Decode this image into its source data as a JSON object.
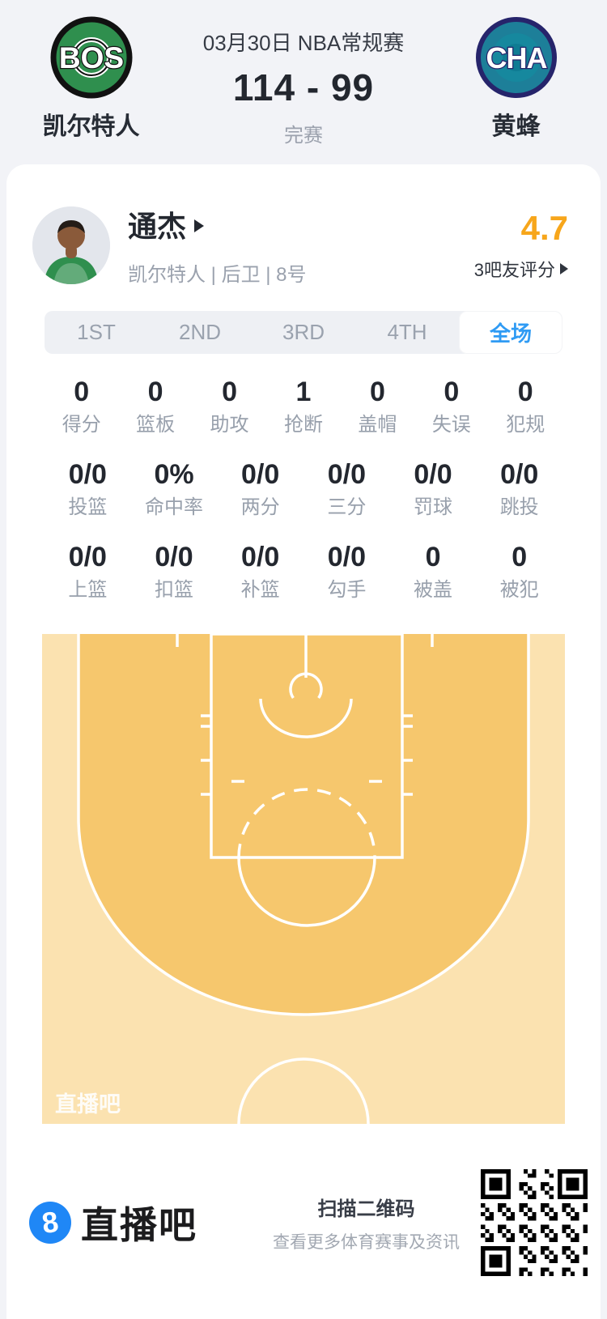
{
  "header": {
    "match_info": "03月30日 NBA常规赛",
    "score": "114 - 99",
    "status": "完赛",
    "home": {
      "abbr": "BOS",
      "name": "凯尔特人",
      "logo_fill": "#2f8f4e",
      "logo_ring": "#111111"
    },
    "away": {
      "abbr": "CHA",
      "name": "黄蜂",
      "logo_fill": "#1d7f99",
      "logo_ring": "#26246b"
    }
  },
  "player": {
    "name": "通杰",
    "meta": "凯尔特人 | 后卫 | 8号",
    "rating": "4.7",
    "rating_label": "3吧友评分"
  },
  "tabs": [
    {
      "label": "1ST",
      "active": false
    },
    {
      "label": "2ND",
      "active": false
    },
    {
      "label": "3RD",
      "active": false
    },
    {
      "label": "4TH",
      "active": false
    },
    {
      "label": "全场",
      "active": true
    }
  ],
  "stats": {
    "row1": [
      {
        "value": "0",
        "label": "得分"
      },
      {
        "value": "0",
        "label": "篮板"
      },
      {
        "value": "0",
        "label": "助攻"
      },
      {
        "value": "1",
        "label": "抢断"
      },
      {
        "value": "0",
        "label": "盖帽"
      },
      {
        "value": "0",
        "label": "失误"
      },
      {
        "value": "0",
        "label": "犯规"
      }
    ],
    "row2": [
      {
        "value": "0/0",
        "label": "投篮"
      },
      {
        "value": "0%",
        "label": "命中率"
      },
      {
        "value": "0/0",
        "label": "两分"
      },
      {
        "value": "0/0",
        "label": "三分"
      },
      {
        "value": "0/0",
        "label": "罚球"
      },
      {
        "value": "0/0",
        "label": "跳投"
      }
    ],
    "row3": [
      {
        "value": "0/0",
        "label": "上篮"
      },
      {
        "value": "0/0",
        "label": "扣篮"
      },
      {
        "value": "0/0",
        "label": "补篮"
      },
      {
        "value": "0/0",
        "label": "勾手"
      },
      {
        "value": "0",
        "label": "被盖"
      },
      {
        "value": "0",
        "label": "被犯"
      }
    ]
  },
  "court": {
    "watermark": "直播吧",
    "inner_color": "#f6c76d",
    "outer_color": "#fbe2b0",
    "line_color": "#ffffff"
  },
  "footer": {
    "brand": "直播吧",
    "badge_text": "8",
    "badge_color": "#1f87f6",
    "qr_title": "扫描二维码",
    "qr_subtitle": "查看更多体育赛事及资讯"
  }
}
